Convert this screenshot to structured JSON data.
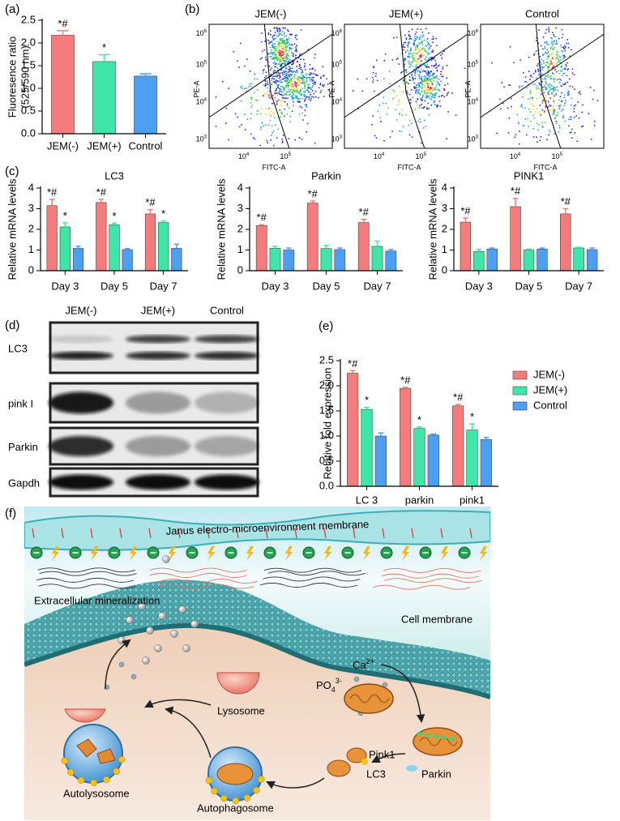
{
  "chart_data": [
    {
      "type": "bar",
      "label": "(a)",
      "ylabel": [
        "Fluoresence ratio",
        "(525/590 nm)"
      ],
      "categories": [
        "JEM(-)",
        "JEM(+)",
        "Control"
      ],
      "values": [
        2.17,
        1.59,
        1.27
      ],
      "errors": [
        0.1,
        0.15,
        0.05
      ],
      "colors": [
        "#f47c7c",
        "#3fe6a8",
        "#4d9ff2"
      ],
      "annotations": [
        "*#",
        "*",
        null
      ],
      "ylim": [
        0,
        2.5
      ],
      "yticks": [
        {
          "value": 0,
          "label": "0.0"
        },
        {
          "value": 0.5,
          "label": "0.5"
        },
        {
          "value": 1,
          "label": "1.0"
        },
        {
          "value": 1.5,
          "label": "1.5"
        },
        {
          "value": 2,
          "label": "2.0"
        },
        {
          "value": 2.5,
          "label": "2.5"
        }
      ]
    },
    {
      "type": "bar",
      "label": "(c)",
      "title": "LC3",
      "ylabel": [
        "Relative mRNA levels"
      ],
      "categories": [
        "Day 3",
        "Day 5",
        "Day 7"
      ],
      "series": [
        {
          "color": "#f47c7c",
          "values": [
            3.15,
            3.3,
            2.75
          ],
          "errors": [
            0.3,
            0.15,
            0.2
          ],
          "annotations": [
            "*#",
            "*#",
            "*#"
          ]
        },
        {
          "color": "#3fe6a8",
          "values": [
            2.12,
            2.22,
            2.33
          ],
          "errors": [
            0.2,
            0.08,
            0.08
          ],
          "annotations": [
            "*",
            "*",
            "*"
          ]
        },
        {
          "color": "#4d9ff2",
          "values": [
            1.08,
            1.02,
            1.08
          ],
          "errors": [
            0.1,
            0.05,
            0.2
          ],
          "annotations": [
            null,
            null,
            null
          ]
        }
      ],
      "ylim": [
        0,
        4
      ],
      "yticks": [
        0,
        1,
        2,
        3,
        4
      ]
    },
    {
      "type": "bar",
      "title": "Parkin",
      "ylabel": [
        "Relative mRNA levels"
      ],
      "categories": [
        "Day 3",
        "Day 5",
        "Day 7"
      ],
      "series": [
        {
          "color": "#f47c7c",
          "values": [
            2.18,
            3.27,
            2.33
          ],
          "errors": [
            0.05,
            0.1,
            0.15
          ],
          "annotations": [
            "*#",
            "*#",
            "*#"
          ]
        },
        {
          "color": "#3fe6a8",
          "values": [
            1.08,
            1.07,
            1.18
          ],
          "errors": [
            0.1,
            0.15,
            0.25
          ],
          "annotations": [
            null,
            null,
            null
          ]
        },
        {
          "color": "#4d9ff2",
          "values": [
            1.0,
            1.02,
            0.95
          ],
          "errors": [
            0.1,
            0.08,
            0.08
          ],
          "annotations": [
            null,
            null,
            null
          ]
        }
      ],
      "ylim": [
        0,
        4
      ],
      "yticks": [
        0,
        1,
        2,
        3,
        4
      ]
    },
    {
      "type": "bar",
      "title": "PINK1",
      "ylabel": [
        "Relative mRNA levels"
      ],
      "categories": [
        "Day 3",
        "Day 5",
        "Day 7"
      ],
      "series": [
        {
          "color": "#f47c7c",
          "values": [
            2.35,
            3.1,
            2.75
          ],
          "errors": [
            0.2,
            0.4,
            0.25
          ],
          "annotations": [
            "*#",
            "*#",
            "*#"
          ]
        },
        {
          "color": "#3fe6a8",
          "values": [
            0.93,
            1.0,
            1.1
          ],
          "errors": [
            0.1,
            0.05,
            0.03
          ],
          "annotations": [
            null,
            null,
            null
          ]
        },
        {
          "color": "#4d9ff2",
          "values": [
            1.05,
            1.05,
            1.02
          ],
          "errors": [
            0.05,
            0.05,
            0.08
          ],
          "annotations": [
            null,
            null,
            null
          ]
        }
      ],
      "ylim": [
        0,
        4
      ],
      "yticks": [
        0,
        1,
        2,
        3,
        4
      ]
    },
    {
      "type": "bar",
      "label": "(e)",
      "ylabel": [
        "Relative fold expression"
      ],
      "categories": [
        "LC 3",
        "parkin",
        "pink1"
      ],
      "legend": "right",
      "series": [
        {
          "name": "JEM(-)",
          "color": "#f47c7c",
          "values": [
            2.25,
            1.95,
            1.6
          ],
          "errors": [
            0.05,
            0.02,
            0.03
          ],
          "annotations": [
            "*#",
            "*#",
            "*#"
          ]
        },
        {
          "name": "JEM(+)",
          "color": "#3fe6a8",
          "values": [
            1.53,
            1.15,
            1.12
          ],
          "errors": [
            0.04,
            0.03,
            0.12
          ],
          "annotations": [
            "*",
            "*",
            "*"
          ]
        },
        {
          "name": "Control",
          "color": "#4d9ff2",
          "values": [
            1.0,
            1.02,
            0.93
          ],
          "errors": [
            0.06,
            0.02,
            0.04
          ],
          "annotations": [
            null,
            null,
            null
          ]
        }
      ],
      "ylim": [
        0,
        2.5
      ],
      "yticks": [
        {
          "value": 0,
          "label": "0.0"
        },
        {
          "value": 0.5,
          "label": "0.5"
        },
        {
          "value": 1,
          "label": "1.0"
        },
        {
          "value": 1.5,
          "label": "1.5"
        },
        {
          "value": 2,
          "label": "2.0"
        },
        {
          "value": 2.5,
          "label": "2.5"
        }
      ]
    }
  ],
  "flow_cytometry": {
    "label": "(b)",
    "plots": [
      "JEM(-)",
      "JEM(+)",
      "Control"
    ],
    "xlabel": "FITC-A",
    "ylabel": "PE-A",
    "xticks": [
      {
        "base": "10",
        "exponent": "4"
      },
      {
        "base": "10",
        "exponent": "5"
      }
    ],
    "yticks": [
      {
        "base": "10",
        "exponent": "6"
      },
      {
        "base": "10",
        "exponent": "5"
      },
      {
        "base": "10",
        "exponent": "4"
      },
      {
        "base": "10",
        "exponent": "3"
      }
    ]
  },
  "western_blot": {
    "label": "(d)",
    "columns": [
      "JEM(-)",
      "JEM(+)",
      "Control"
    ],
    "rows": [
      "LC3",
      "pink I",
      "Parkin",
      "Gapdh"
    ]
  },
  "schematic": {
    "label": "(f)",
    "membrane": "Janus electro-microenvironment membrane",
    "mineralization": "Extracellular mineralization",
    "cell_membrane": "Cell membrane",
    "calcium": {
      "base": "Ca",
      "superscript": "2+"
    },
    "phosphate": {
      "base": "PO",
      "subscript": "4",
      "superscript": "3-"
    },
    "pink1": "Pink1",
    "lc3": "LC3",
    "parkin": "Parkin",
    "lysosome": "Lysosome",
    "autolysosome": "Autolysosome",
    "autophagosome": "Autophagosome"
  }
}
